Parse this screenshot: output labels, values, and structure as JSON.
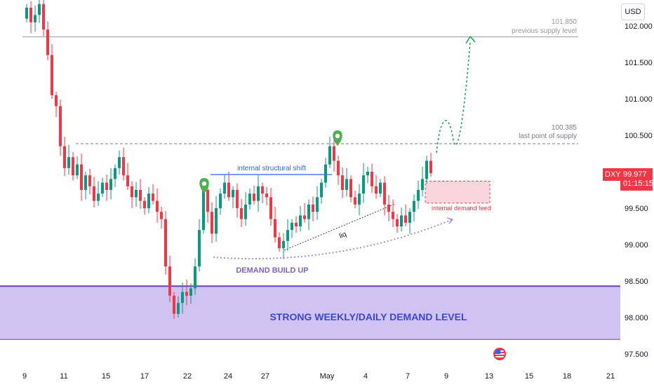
{
  "chart_data": {
    "type": "candlestick",
    "symbol": "DXY",
    "currency": "USD",
    "current_price": "99.977",
    "countdown": "01:15:15",
    "y_ticks": [
      "102.000",
      "101.500",
      "101.000",
      "100.500",
      "99.500",
      "99.000",
      "98.500",
      "98.000",
      "97.500"
    ],
    "x_ticks": [
      "9",
      "11",
      "15",
      "17",
      "22",
      "24",
      "27",
      "May",
      "4",
      "7",
      "9",
      "13",
      "15",
      "18",
      "21"
    ],
    "levels": [
      {
        "price": "101.850",
        "label": "previous supply level"
      },
      {
        "price": "100.385",
        "label": "last point of supply"
      }
    ],
    "annotations": {
      "structural_shift": "internal structural shift",
      "liq": "liq",
      "demand_build_up": "DEMAND BUILD UP",
      "internal_demand": "internal demand feed",
      "demand_zone": "STRONG WEEKLY/DAILY DEMAND LEVEL"
    },
    "colors": {
      "up": "#089981",
      "down": "#f23645",
      "zone": "#c8b9f0",
      "zone_border": "#6b3fc4",
      "label_blue": "#2962ff"
    }
  }
}
